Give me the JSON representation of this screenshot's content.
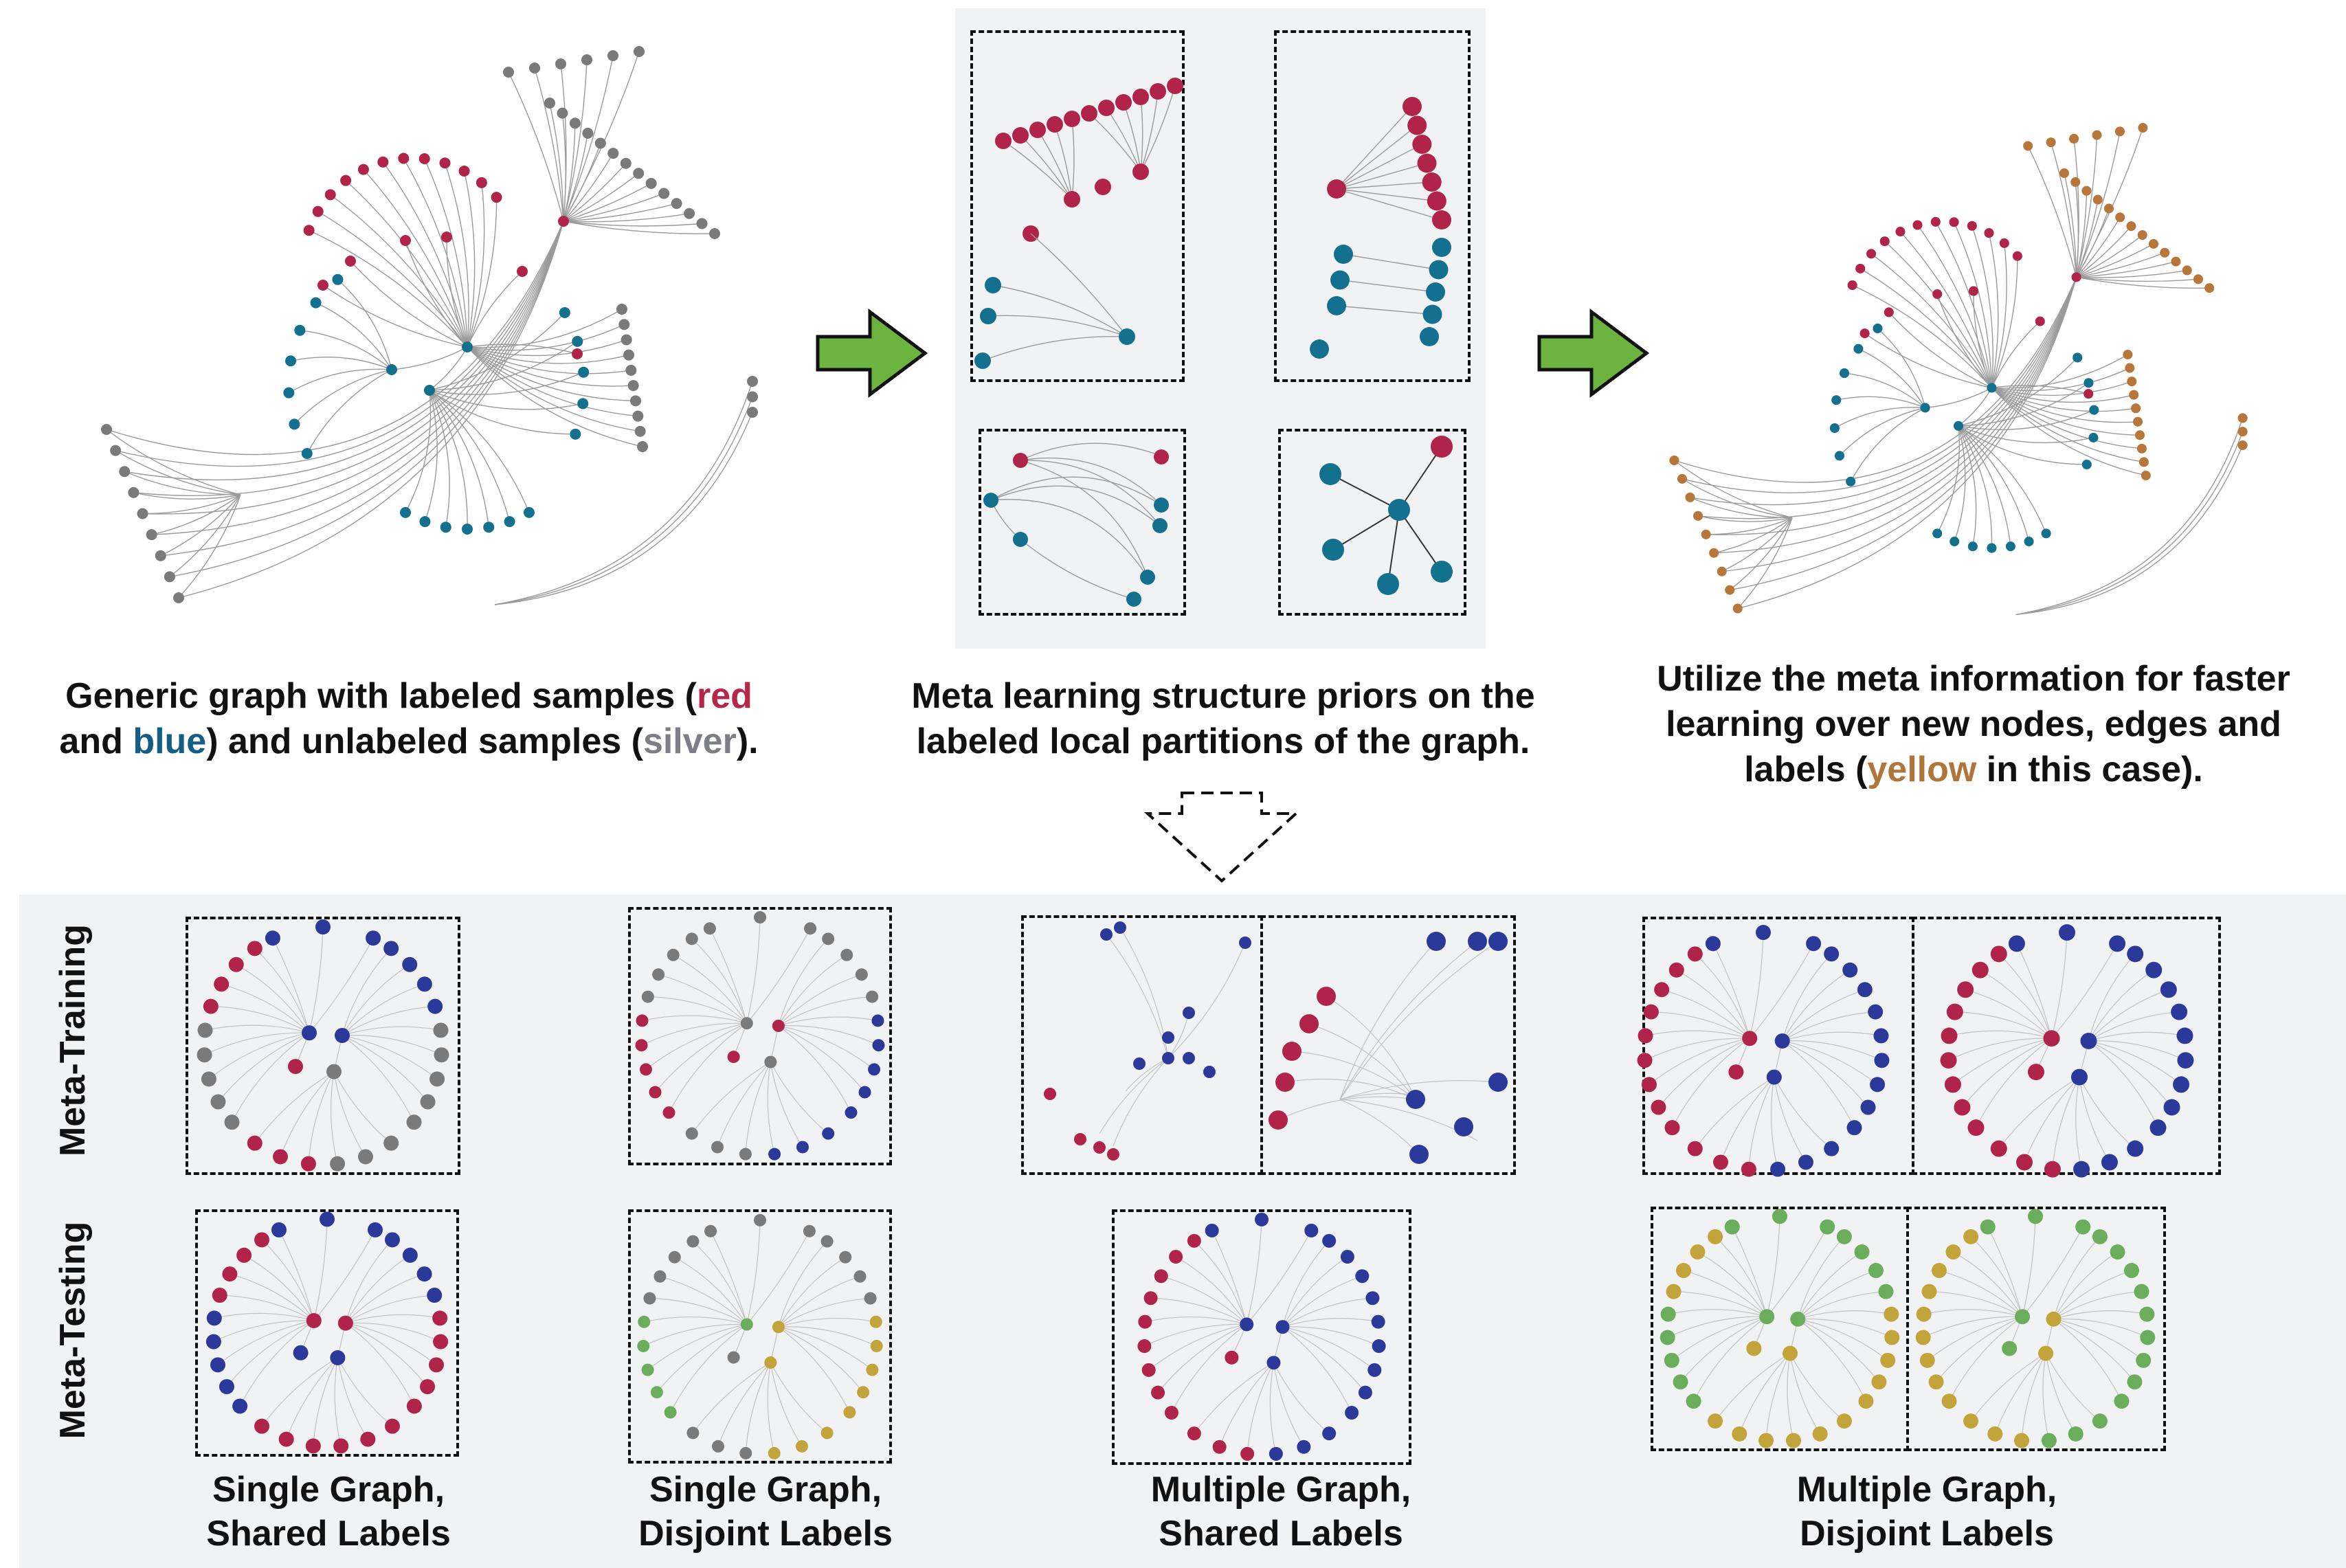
{
  "colors": {
    "red": "#b5284a",
    "blue": "#135e86",
    "silver": "#7e7e86",
    "yellow": "#b0753a",
    "arrow_green": "#6db33f",
    "node_blue": "#13708f",
    "node_red": "#b1244a",
    "node_gray": "#7a7a7a",
    "node_yellow": "#b7773a",
    "bottom_blue": "#2b3a9a",
    "bottom_green": "#6aad5b",
    "bottom_gold": "#c2a43a"
  },
  "captions": {
    "left": {
      "part1": "Generic graph with labeled samples (",
      "red": "red",
      "part2": " and ",
      "blue": "blue",
      "part3": ") and unlabeled samples (",
      "silver": "silver",
      "part4": ")."
    },
    "middle": {
      "line1": "Meta learning structure priors on the",
      "line2": "labeled local partitions of the graph."
    },
    "right": {
      "line1": "Utilize the meta information for faster",
      "line2": "learning over new nodes, edges and",
      "part3a": "labels (",
      "yellow": "yellow",
      "part3b": " in this case)."
    }
  },
  "row_labels": {
    "training": "Meta-Training",
    "testing": "Meta-Testing"
  },
  "column_captions": [
    {
      "line1": "Single Graph,",
      "line2": "Shared Labels"
    },
    {
      "line1": "Single Graph,",
      "line2": "Disjoint Labels"
    },
    {
      "line1": "Multiple Graph,",
      "line2": "Shared Labels"
    },
    {
      "line1": "Multiple Graph,",
      "line2": "Disjoint Labels"
    }
  ]
}
